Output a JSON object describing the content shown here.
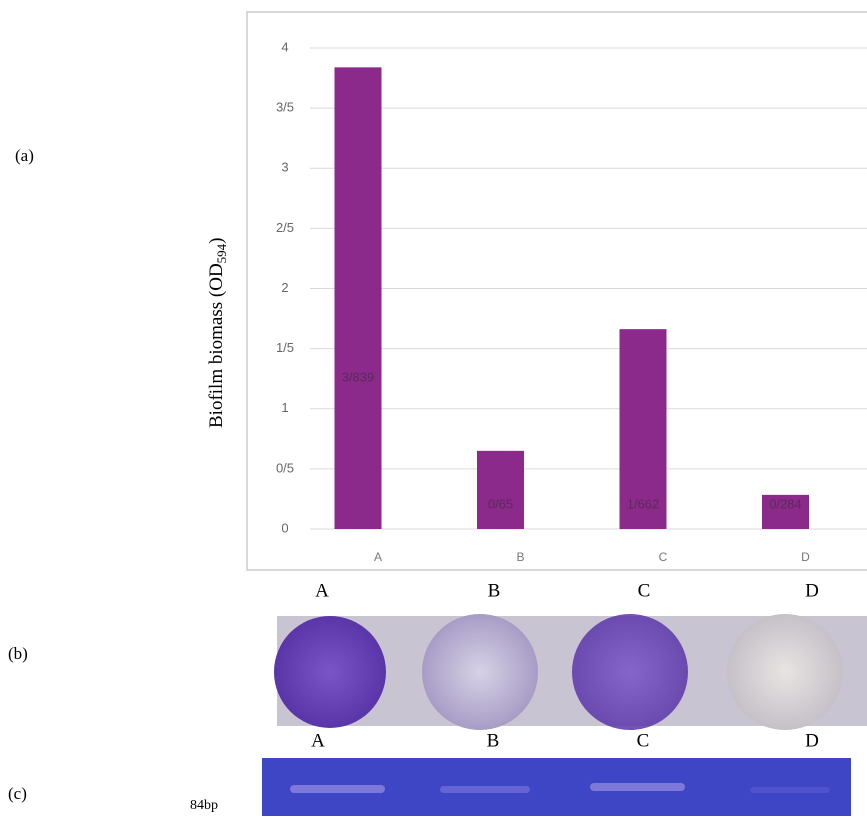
{
  "chart_data": {
    "type": "bar",
    "ylabel": [
      "Biofilm  biomass (OD",
      "594",
      ")"
    ],
    "categories": [
      "A",
      "B",
      "C",
      "D"
    ],
    "values": [
      3.839,
      0.65,
      1.662,
      0.284
    ],
    "value_labels": [
      "3/839",
      "0/65",
      "1/662",
      "0/284"
    ],
    "color": "#8b2a8b",
    "ylim": [
      0,
      4
    ],
    "yticks": [
      0,
      {
        "value": 0.5,
        "label": "0/5"
      },
      1,
      {
        "value": 1.5,
        "label": "1/5"
      },
      2,
      {
        "value": 2.5,
        "label": "2/5"
      },
      3,
      {
        "value": 3.5,
        "label": "3/5"
      },
      4
    ],
    "grid": true
  },
  "panels": {
    "a": "(a)",
    "b": "(b)",
    "c": "(c)"
  },
  "well_labels": [
    "A",
    "B",
    "C",
    "D"
  ],
  "lane_labels": [
    "A",
    "B",
    "C",
    "D"
  ],
  "gel_marker": "84bp"
}
